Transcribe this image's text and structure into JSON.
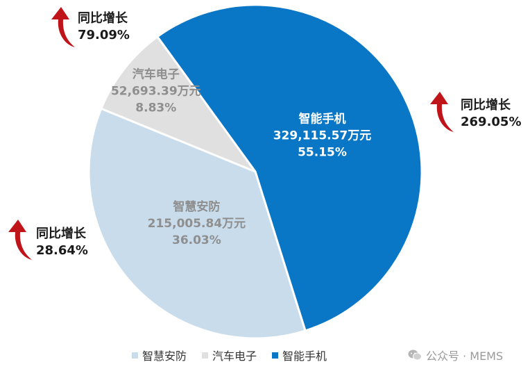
{
  "chart_data": {
    "type": "pie",
    "slices": [
      {
        "name": "智能手机",
        "value": 329115.57,
        "value_label": "329,115.57万元",
        "percent_label": "55.15%",
        "color": "#0A77C6",
        "label_color": "#ffffff"
      },
      {
        "name": "智慧安防",
        "value": 215005.84,
        "value_label": "215,005.84万元",
        "percent_label": "36.03%",
        "color": "#C8DCEC",
        "label_color": "#8E8E8E"
      },
      {
        "name": "汽车电子",
        "value": 52693.39,
        "value_label": "52,693.39万元",
        "percent_label": "8.83%",
        "color": "#E0E0E0",
        "label_color": "#8E8E8E"
      }
    ],
    "annotations": [
      {
        "slice": "汽车电子",
        "title": "同比增长",
        "value": "79.09%"
      },
      {
        "slice": "智能手机",
        "title": "同比增长",
        "value": "269.05%"
      },
      {
        "slice": "智慧安防",
        "title": "同比增长",
        "value": "28.64%"
      }
    ],
    "legend": {
      "placement": "bottom",
      "items": [
        {
          "label": "智慧安防",
          "color": "#C8DCEC"
        },
        {
          "label": "汽车电子",
          "color": "#E0E0E0"
        },
        {
          "label": "智能手机",
          "color": "#0A77C6"
        }
      ]
    },
    "arrow_color": "#C0141B"
  },
  "watermark": {
    "text": "公众号 · MEMS",
    "icon": "wechat-icon"
  }
}
